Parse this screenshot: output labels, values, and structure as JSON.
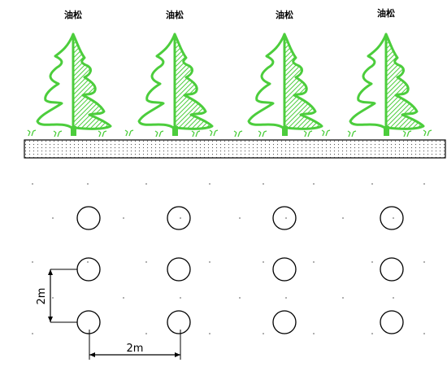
{
  "title": "",
  "trees": [
    {
      "label": "油松"
    },
    {
      "label": "油松"
    },
    {
      "label": "油松"
    },
    {
      "label": "油松"
    }
  ],
  "plan": {
    "rows": 3,
    "columns": 4,
    "spacing_vertical_label": "2m",
    "spacing_horizontal_label": "2m"
  },
  "colors": {
    "tree_green": "#4ccd3c",
    "line": "#000000",
    "soil_dot": "#555555"
  }
}
